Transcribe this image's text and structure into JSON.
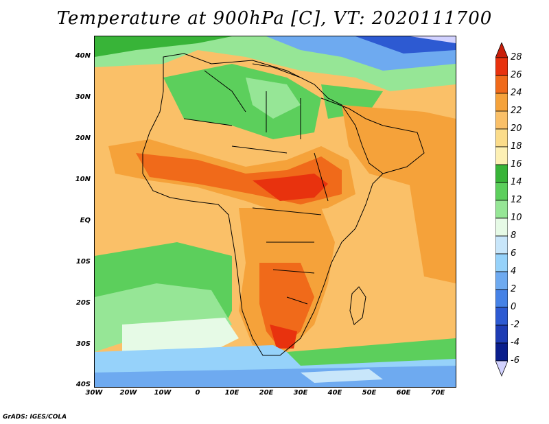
{
  "title": "Temperature at 900hPa [C], VT: 2020111700",
  "credit": "GrADS: IGES/COLA",
  "map": {
    "projection": "latlon",
    "lon_range": [
      -30,
      75
    ],
    "lat_range": [
      -40,
      45
    ],
    "lat_labels": [
      "40N",
      "30N",
      "20N",
      "10N",
      "EQ",
      "10S",
      "20S",
      "30S",
      "40S"
    ],
    "lon_labels": [
      "30W",
      "20W",
      "10W",
      "0",
      "10E",
      "20E",
      "30E",
      "40E",
      "50E",
      "60E",
      "70E"
    ]
  },
  "colorbar": {
    "levels": [
      "28",
      "26",
      "24",
      "22",
      "20",
      "18",
      "16",
      "14",
      "12",
      "10",
      "8",
      "6",
      "4",
      "2",
      "0",
      "-2",
      "-4",
      "-6"
    ],
    "colors": [
      "#e8320e",
      "#f06a1a",
      "#f5a23a",
      "#fac068",
      "#fbdc8a",
      "#fdf0b4",
      "#38b438",
      "#5ccf5c",
      "#96e696",
      "#e6fae6",
      "#c8e6fa",
      "#96d2fa",
      "#6eaaf0",
      "#4682e6",
      "#2d5ad2",
      "#1e3cb4",
      "#0a1e8c"
    ],
    "top_triangle_color": "#c81e0a",
    "bottom_triangle_color": "#d2d2ff"
  }
}
